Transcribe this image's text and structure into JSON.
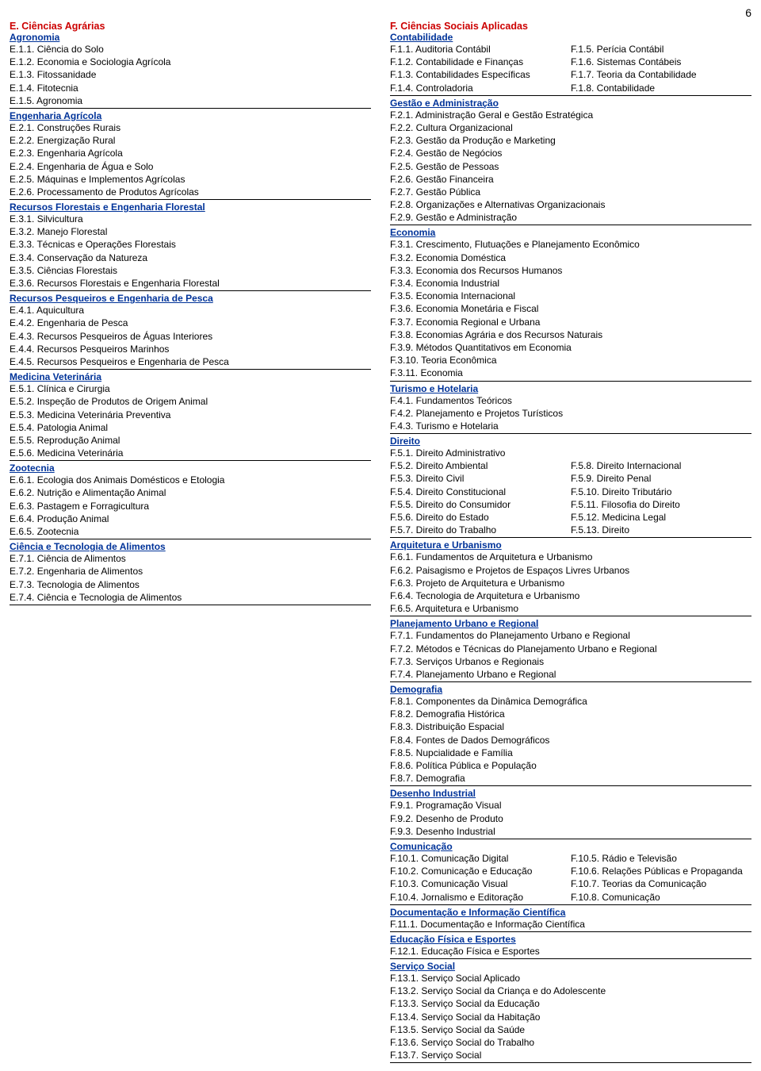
{
  "page_number": "6",
  "left": {
    "title": "E. Ciências Agrárias",
    "groups": [
      {
        "heading": "Agronomia",
        "items": [
          "E.1.1. Ciência do Solo",
          "E.1.2. Economia e Sociologia Agrícola",
          "E.1.3. Fitossanidade",
          "E.1.4. Fitotecnia",
          "E.1.5. Agronomia"
        ]
      },
      {
        "heading": "Engenharia Agrícola",
        "items": [
          "E.2.1. Construções Rurais",
          "E.2.2. Energização Rural",
          "E.2.3. Engenharia Agrícola",
          "E.2.4. Engenharia de Água e Solo",
          "E.2.5. Máquinas e Implementos Agrícolas",
          "E.2.6. Processamento de Produtos Agrícolas"
        ]
      },
      {
        "heading": "Recursos Florestais e Engenharia Florestal",
        "items": [
          "E.3.1. Silvicultura",
          "E.3.2. Manejo Florestal",
          "E.3.3. Técnicas e Operações Florestais",
          "E.3.4. Conservação da Natureza",
          "E.3.5. Ciências Florestais",
          "E.3.6. Recursos Florestais e Engenharia Florestal"
        ]
      },
      {
        "heading": "Recursos Pesqueiros e Engenharia de Pesca",
        "items": [
          "E.4.1. Aquicultura",
          "E.4.2. Engenharia de Pesca",
          "E.4.3. Recursos Pesqueiros de Águas Interiores",
          "E.4.4. Recursos Pesqueiros Marinhos",
          "E.4.5. Recursos Pesqueiros e Engenharia de Pesca"
        ]
      },
      {
        "heading": "Medicina Veterinária",
        "items": [
          "E.5.1. Clínica e Cirurgia",
          "E.5.2. Inspeção de Produtos de Origem Animal",
          "E.5.3. Medicina Veterinária Preventiva",
          "E.5.4. Patologia Animal",
          "E.5.5. Reprodução Animal",
          "E.5.6. Medicina Veterinária"
        ]
      },
      {
        "heading": "Zootecnia",
        "items": [
          "E.6.1. Ecologia dos Animais Domésticos e Etologia",
          "E.6.2. Nutrição e Alimentação Animal",
          "E.6.3. Pastagem e Forragicultura",
          "E.6.4. Produção Animal",
          "E.6.5. Zootecnia"
        ]
      },
      {
        "heading": "Ciência e Tecnologia de Alimentos",
        "items": [
          "E.7.1. Ciência de Alimentos",
          "E.7.2. Engenharia de Alimentos",
          "E.7.3. Tecnologia de Alimentos",
          "E.7.4. Ciência e Tecnologia de Alimentos"
        ]
      }
    ]
  },
  "right": {
    "title": "F. Ciências Sociais Aplicadas",
    "groups": [
      {
        "heading": "Contabilidade",
        "pairs": [
          [
            "F.1.1. Auditoria Contábil",
            "F.1.5. Perícia Contábil"
          ],
          [
            "F.1.2. Contabilidade e Finanças",
            "F.1.6. Sistemas Contábeis"
          ],
          [
            "F.1.3. Contabilidades Específicas",
            "F.1.7. Teoria da Contabilidade"
          ],
          [
            "F.1.4. Controladoria",
            "F.1.8. Contabilidade"
          ]
        ]
      },
      {
        "heading": "Gestão e Administração",
        "items": [
          "F.2.1. Administração Geral e Gestão Estratégica",
          "F.2.2. Cultura Organizacional",
          "F.2.3. Gestão da Produção e Marketing",
          "F.2.4. Gestão de Negócios",
          "F.2.5. Gestão de Pessoas",
          "F.2.6. Gestão Financeira",
          "F.2.7. Gestão Pública",
          "F.2.8. Organizações e Alternativas Organizacionais",
          "F.2.9. Gestão e Administração"
        ]
      },
      {
        "heading": "Economia",
        "items": [
          "F.3.1. Crescimento, Flutuações e Planejamento Econômico",
          "F.3.2. Economia Doméstica",
          "F.3.3. Economia dos Recursos Humanos",
          "F.3.4. Economia Industrial",
          "F.3.5. Economia Internacional",
          "F.3.6. Economia Monetária e Fiscal",
          "F.3.7. Economia Regional e Urbana",
          "F.3.8. Economias Agrária e dos Recursos Naturais",
          "F.3.9. Métodos Quantitativos em Economia",
          "F.3.10. Teoria Econômica",
          "F.3.11. Economia"
        ]
      },
      {
        "heading": "Turismo e Hotelaria",
        "items": [
          "F.4.1. Fundamentos Teóricos",
          "F.4.2. Planejamento e Projetos Turísticos",
          "F.4.3. Turismo e Hotelaria"
        ]
      },
      {
        "heading": "Direito",
        "items_first": [
          "F.5.1. Direito Administrativo"
        ],
        "pairs": [
          [
            "F.5.2. Direito Ambiental",
            "F.5.8. Direito Internacional"
          ],
          [
            "F.5.3. Direito Civil",
            "F.5.9. Direito Penal"
          ],
          [
            "F.5.4. Direito Constitucional",
            "F.5.10. Direito Tributário"
          ],
          [
            "F.5.5. Direito do Consumidor",
            "F.5.11. Filosofia do Direito"
          ],
          [
            "F.5.6. Direito do Estado",
            "F.5.12. Medicina Legal"
          ],
          [
            "F.5.7. Direito do Trabalho",
            "F.5.13. Direito"
          ]
        ]
      },
      {
        "heading": "Arquitetura e Urbanismo",
        "items": [
          "F.6.1. Fundamentos de Arquitetura e Urbanismo",
          "F.6.2. Paisagismo e Projetos de Espaços Livres Urbanos",
          "F.6.3. Projeto de Arquitetura e Urbanismo",
          "F.6.4. Tecnologia de Arquitetura e Urbanismo",
          "F.6.5. Arquitetura e Urbanismo"
        ]
      },
      {
        "heading": "Planejamento Urbano e Regional",
        "items": [
          "F.7.1. Fundamentos do Planejamento Urbano e Regional",
          "F.7.2. Métodos e Técnicas do Planejamento Urbano e Regional",
          "F.7.3. Serviços Urbanos e Regionais",
          "F.7.4. Planejamento Urbano e Regional"
        ]
      },
      {
        "heading": "Demografia",
        "items": [
          "F.8.1. Componentes da Dinâmica Demográfica",
          "F.8.2. Demografia Histórica",
          "F.8.3. Distribuição Espacial",
          "F.8.4. Fontes de Dados Demográficos",
          "F.8.5. Nupcialidade e Família",
          "F.8.6. Política Pública e População",
          "F.8.7. Demografia"
        ]
      },
      {
        "heading": "Desenho Industrial",
        "items": [
          "F.9.1. Programação Visual",
          "F.9.2. Desenho de Produto",
          "F.9.3. Desenho Industrial"
        ]
      },
      {
        "heading": "Comunicação",
        "pairs": [
          [
            "F.10.1. Comunicação Digital",
            "F.10.5. Rádio e Televisão"
          ],
          [
            "F.10.2. Comunicação e Educação",
            "F.10.6. Relações Públicas e Propaganda"
          ],
          [
            "F.10.3. Comunicação Visual",
            "F.10.7. Teorias da Comunicação"
          ],
          [
            "F.10.4. Jornalismo e Editoração",
            "F.10.8. Comunicação"
          ]
        ]
      },
      {
        "heading": "Documentação e Informação Científica",
        "items": [
          "F.11.1. Documentação e Informação Científica"
        ]
      },
      {
        "heading": "Educação Física e Esportes",
        "items": [
          "F.12.1. Educação Física e Esportes"
        ]
      },
      {
        "heading": "Serviço Social",
        "items": [
          "F.13.1. Serviço Social Aplicado",
          "F.13.2. Serviço Social da Criança e do Adolescente",
          "F.13.3. Serviço Social da Educação",
          "F.13.4. Serviço Social da Habitação",
          "F.13.5. Serviço Social da Saúde",
          "F.13.6. Serviço Social do Trabalho",
          "F.13.7. Serviço Social"
        ]
      }
    ]
  }
}
